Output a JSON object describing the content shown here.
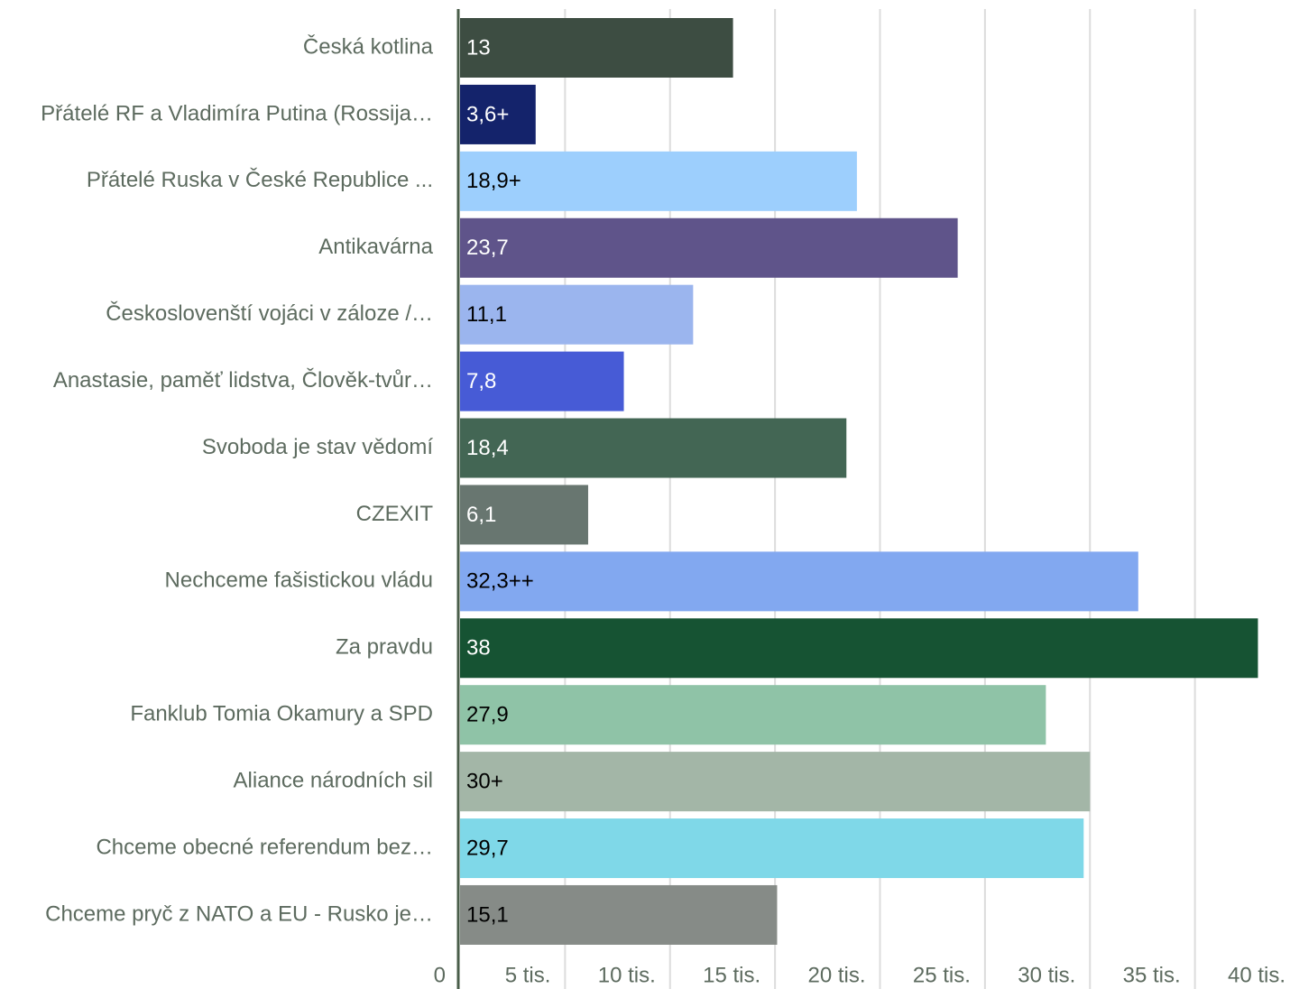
{
  "chart_data": {
    "type": "hbar",
    "categories": [
      "Česká kotlina",
      "Přátelé RF a Vladimíra Putina (Rossija…",
      "Přátelé Ruska v České Republice ...",
      "Antikavárna",
      "Českoslovenští vojáci v záloze /…",
      "Anastasie, paměť lidstva, Člověk-tvůr…",
      "Svoboda je stav vědomí",
      "CZEXIT",
      "Nechceme fašistickou vládu",
      "Za pravdu",
      "Fanklub Tomia Okamury a SPD",
      "Aliance národních sil",
      "Chceme obecné referendum bez…",
      "Chceme pryč z NATO a EU - Rusko je…"
    ],
    "values": [
      13,
      3.6,
      18.9,
      23.7,
      11.1,
      7.8,
      18.4,
      6.1,
      32.3,
      38,
      27.9,
      30,
      29.7,
      15.1
    ],
    "value_labels": [
      "13",
      "3,6+",
      "18,9+",
      "23,7",
      "11,1",
      "7,8",
      "18,4",
      "6,1",
      "32,3++",
      "38",
      "27,9",
      "30+",
      "29,7",
      "15,1"
    ],
    "colors": [
      "#3d4d42",
      "#14236b",
      "#9dcffd",
      "#5f548a",
      "#9bb5ee",
      "#475bd6",
      "#436654",
      "#687670",
      "#82a8f0",
      "#165333",
      "#8fc3a7",
      "#a3b6a7",
      "#7fd8e8",
      "#868b87"
    ],
    "xlim": [
      0,
      40
    ],
    "xticks": [
      0,
      {
        "value": 5,
        "label": "5 tis."
      },
      {
        "value": 10,
        "label": "10 tis."
      },
      {
        "value": 15,
        "label": "15 tis."
      },
      {
        "value": 20,
        "label": "20 tis."
      },
      {
        "value": 25,
        "label": "25 tis."
      },
      {
        "value": 30,
        "label": "30 tis."
      },
      {
        "value": 35,
        "label": "35 tis."
      },
      {
        "value": 40,
        "label": "40 tis."
      }
    ],
    "grid": true
  }
}
